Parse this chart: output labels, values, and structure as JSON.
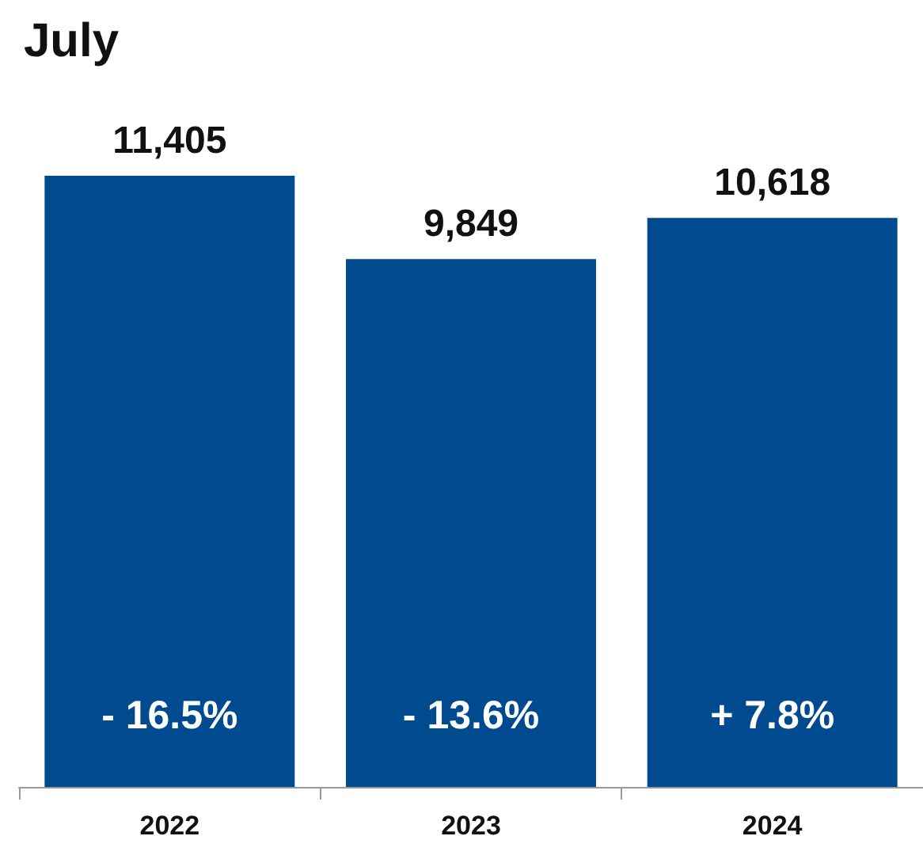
{
  "chart_data": {
    "type": "bar",
    "title": "July",
    "categories": [
      "2022",
      "2023",
      "2024"
    ],
    "values": [
      11405,
      9849,
      10618
    ],
    "color": "#004a8f",
    "value_labels": [
      "11,405",
      "9,849",
      "10,618"
    ],
    "annotations": [
      "- 16.5%",
      "- 13.6%",
      "+ 7.8%"
    ]
  }
}
